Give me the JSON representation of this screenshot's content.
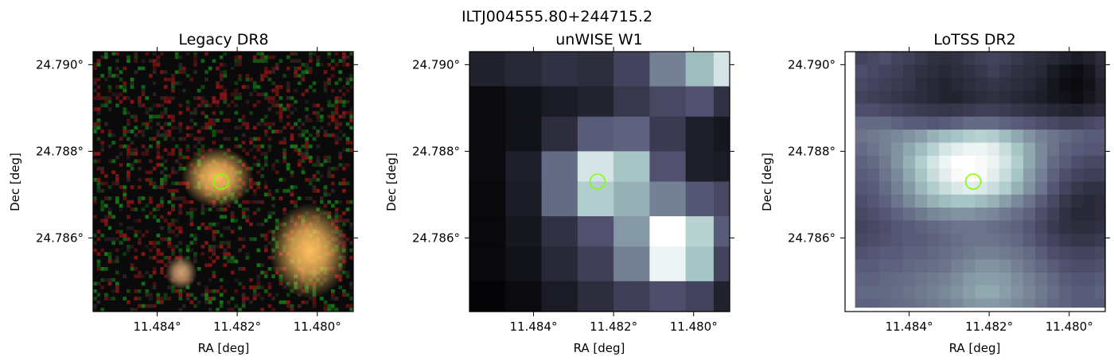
{
  "figure_title": "ILTJ004555.80+244715.2",
  "chart_data": [
    {
      "type": "heatmap",
      "title": "Legacy DR8",
      "image_kind": "rgb-noise",
      "xlabel": "RA [deg]",
      "ylabel": "Dec [deg]",
      "xticks": [
        11.484,
        11.482,
        11.48
      ],
      "xtick_labels": [
        "11.484°",
        "11.482°",
        "11.480°"
      ],
      "yticks": [
        24.79,
        24.788,
        24.786
      ],
      "ytick_labels": [
        "24.790°",
        "24.788°",
        "24.786°"
      ],
      "xlim": [
        11.4856,
        11.4791
      ],
      "ylim": [
        24.7843,
        24.7903
      ],
      "sources": [
        {
          "ra": 11.4825,
          "dec": 24.7874,
          "rx": 0.0009,
          "ry": 0.0007,
          "color": "#ffc060"
        },
        {
          "ra": 11.4802,
          "dec": 24.7857,
          "rx": 0.001,
          "ry": 0.0011,
          "color": "#ffc060"
        },
        {
          "ra": 11.4834,
          "dec": 24.7852,
          "rx": 0.0004,
          "ry": 0.0004,
          "color": "#d0a070"
        }
      ],
      "marker": {
        "ra": 11.4824,
        "dec": 24.7873,
        "color": "#7fff00"
      }
    },
    {
      "type": "heatmap",
      "title": "unWISE W1",
      "image_kind": "grid",
      "xlabel": "RA [deg]",
      "ylabel": "Dec [deg]",
      "xticks": [
        11.484,
        11.482,
        11.48
      ],
      "xtick_labels": [
        "11.484°",
        "11.482°",
        "11.480°"
      ],
      "yticks": [
        24.79,
        24.788,
        24.786
      ],
      "ytick_labels": [
        "24.790°",
        "24.788°",
        "24.786°"
      ],
      "xlim": [
        11.4856,
        11.4791
      ],
      "ylim": [
        24.7843,
        24.7903
      ],
      "grid_x_edges": [
        11.4856,
        11.4847,
        11.4838,
        11.4829,
        11.482,
        11.4811,
        11.4802,
        11.4795,
        11.4791
      ],
      "grid_y_edges": [
        24.7903,
        24.7895,
        24.7888,
        24.788,
        24.7873,
        24.7865,
        24.7858,
        24.785,
        24.7843
      ],
      "grid_values": [
        [
          0.15,
          0.18,
          0.22,
          0.2,
          0.3,
          0.52,
          0.72,
          0.88
        ],
        [
          0.05,
          0.08,
          0.12,
          0.16,
          0.25,
          0.32,
          0.36,
          0.22
        ],
        [
          0.05,
          0.08,
          0.2,
          0.4,
          0.42,
          0.26,
          0.14,
          0.1
        ],
        [
          0.05,
          0.14,
          0.45,
          0.88,
          0.75,
          0.36,
          0.14,
          0.12
        ],
        [
          0.04,
          0.12,
          0.45,
          0.78,
          0.68,
          0.52,
          0.38,
          0.32
        ],
        [
          0.04,
          0.1,
          0.22,
          0.36,
          0.6,
          1.0,
          0.8,
          0.4
        ],
        [
          0.04,
          0.08,
          0.18,
          0.28,
          0.52,
          0.95,
          0.75,
          0.3
        ],
        [
          0.02,
          0.05,
          0.12,
          0.2,
          0.28,
          0.35,
          0.3,
          0.15
        ]
      ],
      "marker": {
        "ra": 11.4824,
        "dec": 24.7873,
        "color": "#7fff00"
      }
    },
    {
      "type": "heatmap",
      "title": "LoTSS DR2",
      "image_kind": "grid",
      "xlabel": "RA [deg]",
      "ylabel": "Dec [deg]",
      "xticks": [
        11.484,
        11.482,
        11.48
      ],
      "xtick_labels": [
        "11.484°",
        "11.482°",
        "11.480°"
      ],
      "yticks": [
        24.79,
        24.788,
        24.786
      ],
      "ytick_labels": [
        "24.790°",
        "24.788°",
        "24.786°"
      ],
      "xlim": [
        11.4856,
        11.4791
      ],
      "ylim": [
        24.7843,
        24.7903
      ],
      "grid_x_edges": [
        11.48535,
        11.48505,
        11.48475,
        11.48445,
        11.48415,
        11.48385,
        11.48355,
        11.48325,
        11.48295,
        11.48265,
        11.48235,
        11.48205,
        11.48175,
        11.48145,
        11.48115,
        11.48085,
        11.48055,
        11.48025,
        11.47995,
        11.47965,
        11.47935,
        11.4791
      ],
      "grid_y_edges": [
        24.7903,
        24.79,
        24.7897,
        24.7894,
        24.7891,
        24.7888,
        24.7885,
        24.7882,
        24.7879,
        24.7876,
        24.7873,
        24.787,
        24.7867,
        24.7864,
        24.7861,
        24.7858,
        24.7855,
        24.7852,
        24.7849,
        24.7846,
        24.7844
      ],
      "grid_values": [
        [
          0.3,
          0.32,
          0.35,
          0.3,
          0.28,
          0.25,
          0.22,
          0.2,
          0.22,
          0.25,
          0.28,
          0.3,
          0.28,
          0.25,
          0.22,
          0.2,
          0.18,
          0.15,
          0.12,
          0.15,
          0.2
        ],
        [
          0.35,
          0.32,
          0.3,
          0.28,
          0.25,
          0.22,
          0.2,
          0.18,
          0.2,
          0.22,
          0.25,
          0.28,
          0.25,
          0.22,
          0.2,
          0.18,
          0.12,
          0.08,
          0.06,
          0.1,
          0.18
        ],
        [
          0.32,
          0.3,
          0.28,
          0.26,
          0.24,
          0.2,
          0.18,
          0.16,
          0.18,
          0.2,
          0.22,
          0.24,
          0.22,
          0.2,
          0.18,
          0.15,
          0.1,
          0.06,
          0.05,
          0.08,
          0.15
        ],
        [
          0.3,
          0.28,
          0.26,
          0.24,
          0.22,
          0.2,
          0.18,
          0.16,
          0.16,
          0.18,
          0.2,
          0.22,
          0.2,
          0.18,
          0.16,
          0.14,
          0.1,
          0.08,
          0.06,
          0.1,
          0.15
        ],
        [
          0.35,
          0.35,
          0.32,
          0.3,
          0.28,
          0.26,
          0.25,
          0.24,
          0.25,
          0.26,
          0.28,
          0.28,
          0.26,
          0.24,
          0.22,
          0.2,
          0.18,
          0.16,
          0.15,
          0.18,
          0.2
        ],
        [
          0.45,
          0.45,
          0.45,
          0.42,
          0.4,
          0.4,
          0.38,
          0.4,
          0.42,
          0.45,
          0.45,
          0.45,
          0.42,
          0.4,
          0.38,
          0.35,
          0.32,
          0.3,
          0.3,
          0.32,
          0.35
        ],
        [
          0.48,
          0.5,
          0.52,
          0.55,
          0.58,
          0.62,
          0.68,
          0.72,
          0.75,
          0.78,
          0.8,
          0.78,
          0.72,
          0.65,
          0.58,
          0.52,
          0.48,
          0.45,
          0.42,
          0.4,
          0.4
        ],
        [
          0.45,
          0.48,
          0.52,
          0.58,
          0.65,
          0.72,
          0.8,
          0.88,
          0.92,
          0.95,
          0.95,
          0.92,
          0.85,
          0.75,
          0.65,
          0.55,
          0.48,
          0.42,
          0.4,
          0.38,
          0.38
        ],
        [
          0.42,
          0.45,
          0.5,
          0.58,
          0.68,
          0.78,
          0.88,
          0.95,
          1.0,
          1.0,
          0.98,
          0.95,
          0.88,
          0.78,
          0.65,
          0.55,
          0.45,
          0.4,
          0.35,
          0.32,
          0.32
        ],
        [
          0.4,
          0.42,
          0.48,
          0.55,
          0.65,
          0.75,
          0.85,
          0.92,
          0.98,
          1.0,
          0.98,
          0.92,
          0.85,
          0.75,
          0.62,
          0.52,
          0.42,
          0.35,
          0.3,
          0.28,
          0.28
        ],
        [
          0.38,
          0.4,
          0.45,
          0.52,
          0.6,
          0.7,
          0.78,
          0.85,
          0.9,
          0.92,
          0.9,
          0.85,
          0.78,
          0.68,
          0.58,
          0.48,
          0.38,
          0.3,
          0.25,
          0.22,
          0.22
        ],
        [
          0.35,
          0.38,
          0.42,
          0.48,
          0.55,
          0.62,
          0.68,
          0.72,
          0.75,
          0.75,
          0.72,
          0.68,
          0.62,
          0.55,
          0.48,
          0.4,
          0.32,
          0.25,
          0.2,
          0.18,
          0.2
        ],
        [
          0.32,
          0.35,
          0.38,
          0.42,
          0.46,
          0.5,
          0.54,
          0.56,
          0.58,
          0.58,
          0.56,
          0.54,
          0.5,
          0.46,
          0.42,
          0.35,
          0.28,
          0.22,
          0.18,
          0.18,
          0.2
        ],
        [
          0.3,
          0.32,
          0.35,
          0.38,
          0.4,
          0.42,
          0.44,
          0.46,
          0.48,
          0.48,
          0.48,
          0.46,
          0.44,
          0.42,
          0.38,
          0.32,
          0.26,
          0.22,
          0.2,
          0.2,
          0.22
        ],
        [
          0.32,
          0.34,
          0.36,
          0.38,
          0.4,
          0.4,
          0.42,
          0.44,
          0.46,
          0.48,
          0.48,
          0.48,
          0.46,
          0.44,
          0.4,
          0.35,
          0.3,
          0.26,
          0.24,
          0.24,
          0.26
        ],
        [
          0.36,
          0.38,
          0.4,
          0.4,
          0.42,
          0.42,
          0.44,
          0.46,
          0.48,
          0.5,
          0.52,
          0.52,
          0.5,
          0.48,
          0.45,
          0.4,
          0.35,
          0.32,
          0.3,
          0.3,
          0.32
        ],
        [
          0.4,
          0.4,
          0.42,
          0.42,
          0.44,
          0.45,
          0.46,
          0.48,
          0.52,
          0.55,
          0.58,
          0.58,
          0.56,
          0.52,
          0.48,
          0.44,
          0.4,
          0.36,
          0.34,
          0.34,
          0.36
        ],
        [
          0.42,
          0.42,
          0.44,
          0.45,
          0.46,
          0.48,
          0.5,
          0.52,
          0.56,
          0.6,
          0.62,
          0.62,
          0.6,
          0.56,
          0.52,
          0.48,
          0.44,
          0.4,
          0.38,
          0.38,
          0.4
        ],
        [
          0.44,
          0.44,
          0.45,
          0.46,
          0.48,
          0.5,
          0.52,
          0.55,
          0.58,
          0.62,
          0.65,
          0.65,
          0.62,
          0.58,
          0.54,
          0.5,
          0.46,
          0.42,
          0.4,
          0.4,
          0.42
        ],
        [
          0.42,
          0.42,
          0.44,
          0.45,
          0.46,
          0.48,
          0.5,
          0.52,
          0.55,
          0.58,
          0.6,
          0.6,
          0.58,
          0.55,
          0.52,
          0.48,
          0.44,
          0.42,
          0.4,
          0.4,
          0.4
        ]
      ],
      "marker": {
        "ra": 11.4824,
        "dec": 24.7873,
        "color": "#7fff00"
      }
    }
  ]
}
